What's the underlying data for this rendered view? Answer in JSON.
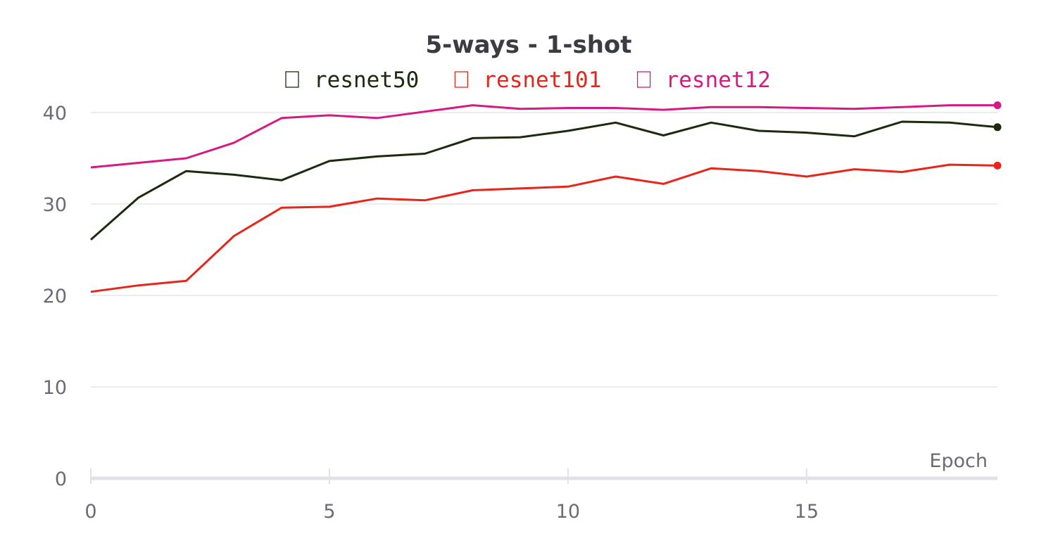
{
  "chart_data": {
    "type": "line",
    "title": "5-ways - 1-shot",
    "xlabel": "Epoch",
    "ylabel": "",
    "xlim": [
      0,
      19
    ],
    "ylim": [
      0,
      40
    ],
    "xticks": [
      0,
      5,
      10,
      15
    ],
    "yticks": [
      0,
      10,
      20,
      30,
      40
    ],
    "grid": true,
    "legend": "top-center",
    "x": [
      0,
      1,
      2,
      3,
      4,
      5,
      6,
      7,
      8,
      9,
      10,
      11,
      12,
      13,
      14,
      15,
      16,
      17,
      18,
      19
    ],
    "series": [
      {
        "name": "resnet50",
        "color": "#1c2a0e",
        "values": [
          26.1,
          30.7,
          33.6,
          33.2,
          32.6,
          34.7,
          35.2,
          35.5,
          37.2,
          37.3,
          38.0,
          38.9,
          37.5,
          38.9,
          38.0,
          37.8,
          37.4,
          39.0,
          38.9,
          38.4
        ]
      },
      {
        "name": "resnet101",
        "color": "#e8251a",
        "values": [
          20.4,
          21.1,
          21.6,
          26.5,
          29.6,
          29.7,
          30.6,
          30.4,
          31.5,
          31.7,
          31.9,
          33.0,
          32.2,
          33.9,
          33.6,
          33.0,
          33.8,
          33.5,
          34.3,
          34.2
        ]
      },
      {
        "name": "resnet12",
        "color": "#d61a84",
        "values": [
          34.0,
          34.5,
          35.0,
          36.7,
          39.4,
          39.7,
          39.4,
          40.1,
          40.8,
          40.4,
          40.5,
          40.5,
          40.3,
          40.6,
          40.6,
          40.5,
          40.4,
          40.6,
          40.8,
          40.8
        ]
      }
    ]
  }
}
